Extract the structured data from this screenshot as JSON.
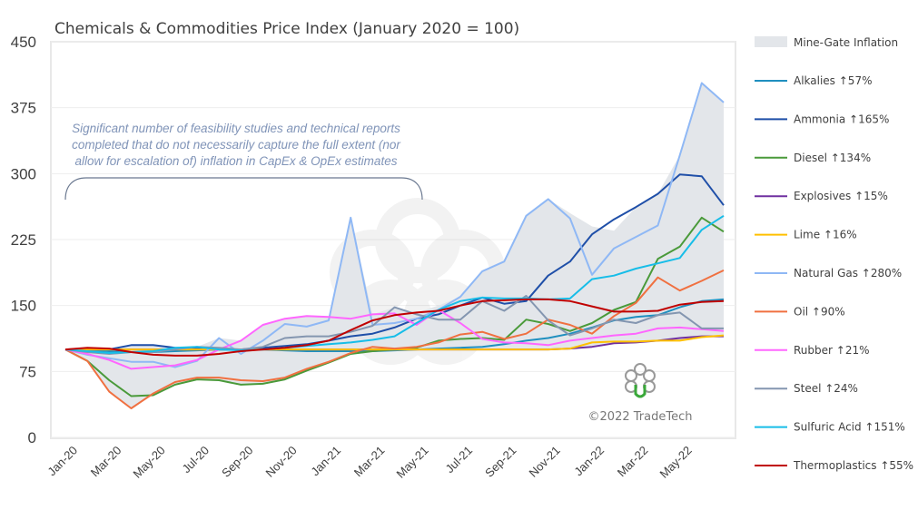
{
  "chart_data": {
    "type": "line",
    "title": "Chemicals & Commodities Price Index (January 2020 = 100)",
    "xlabel": "",
    "ylabel": "",
    "ylim": [
      0,
      450
    ],
    "yticks": [
      0,
      75,
      150,
      225,
      300,
      375,
      450
    ],
    "grid": "horizontal",
    "legend_position": "right",
    "x": [
      "Jan-20",
      "Feb-20",
      "Mar-20",
      "Apr-20",
      "May-20",
      "Jun-20",
      "Jul-20",
      "Aug-20",
      "Sep-20",
      "Oct-20",
      "Nov-20",
      "Dec-20",
      "Jan-21",
      "Feb-21",
      "Mar-21",
      "Apr-21",
      "May-21",
      "Jun-21",
      "Jul-21",
      "Aug-21",
      "Sep-21",
      "Oct-21",
      "Nov-21",
      "Dec-21",
      "Jan-22",
      "Feb-22",
      "Mar-22",
      "Apr-22",
      "May-22",
      "Jun-22",
      "Jul-22"
    ],
    "xtick_labels": [
      "Jan-20",
      "Mar-20",
      "May-20",
      "Jul-20",
      "Sep-20",
      "Nov-20",
      "Jan-21",
      "Mar-21",
      "May-21",
      "Jul-21",
      "Sep-21",
      "Nov-21",
      "Jan-22",
      "Mar-22",
      "May-22"
    ],
    "area": {
      "name": "Mine-Gate Inflation",
      "color": "#e3e6ea",
      "upper": [
        100,
        102,
        101,
        105,
        105,
        102,
        103,
        113,
        110,
        128,
        135,
        138,
        137,
        250,
        140,
        148,
        142,
        150,
        160,
        189,
        200,
        252,
        271,
        255,
        240,
        235,
        262,
        277,
        321,
        403,
        381
      ],
      "lower": [
        100,
        87,
        52,
        33,
        48,
        60,
        66,
        65,
        60,
        61,
        66,
        76,
        85,
        95,
        98,
        99,
        100,
        100,
        100,
        100,
        100,
        100,
        100,
        100,
        103,
        107,
        108,
        110,
        110,
        114,
        114
      ]
    },
    "series": [
      {
        "name": "Alkalies ↑57%",
        "color": "#1f8fbf",
        "values": [
          100,
          99,
          98,
          97,
          97,
          98,
          99,
          100,
          100,
          100,
          99,
          98,
          98,
          98,
          98,
          99,
          100,
          101,
          102,
          103,
          106,
          110,
          113,
          118,
          125,
          133,
          137,
          139,
          148,
          155,
          157
        ]
      },
      {
        "name": "Ammonia ↑165%",
        "color": "#1f4fa8",
        "values": [
          100,
          101,
          100,
          105,
          105,
          102,
          101,
          100,
          100,
          102,
          104,
          106,
          110,
          115,
          118,
          125,
          135,
          140,
          150,
          159,
          152,
          155,
          184,
          200,
          231,
          248,
          262,
          277,
          299,
          297,
          264
        ]
      },
      {
        "name": "Diesel ↑134%",
        "color": "#4a9a3a",
        "values": [
          100,
          87,
          65,
          47,
          48,
          60,
          66,
          65,
          60,
          61,
          66,
          76,
          85,
          95,
          98,
          100,
          102,
          110,
          112,
          113,
          111,
          134,
          129,
          121,
          130,
          145,
          154,
          203,
          217,
          250,
          234
        ]
      },
      {
        "name": "Explosives ↑15%",
        "color": "#7030a0",
        "values": [
          100,
          100,
          100,
          100,
          100,
          100,
          100,
          100,
          100,
          100,
          100,
          100,
          100,
          100,
          100,
          100,
          100,
          100,
          100,
          100,
          100,
          100,
          100,
          101,
          103,
          107,
          108,
          110,
          113,
          115,
          115
        ]
      },
      {
        "name": "Lime ↑16%",
        "color": "#ffc000",
        "values": [
          100,
          100,
          100,
          100,
          100,
          100,
          100,
          100,
          100,
          100,
          100,
          100,
          100,
          100,
          100,
          100,
          100,
          100,
          100,
          100,
          100,
          100,
          100,
          101,
          108,
          109,
          109,
          110,
          110,
          114,
          116
        ]
      },
      {
        "name": "Natural Gas ↑280%",
        "color": "#8fb8f5",
        "values": [
          100,
          94,
          90,
          86,
          86,
          80,
          87,
          113,
          95,
          110,
          129,
          126,
          133,
          250,
          128,
          130,
          135,
          145,
          160,
          189,
          200,
          252,
          271,
          249,
          185,
          215,
          228,
          241,
          321,
          403,
          381
        ]
      },
      {
        "name": "Oil ↑90%",
        "color": "#f07040",
        "values": [
          100,
          87,
          52,
          33,
          50,
          63,
          68,
          68,
          65,
          64,
          68,
          78,
          86,
          96,
          103,
          101,
          103,
          108,
          117,
          120,
          112,
          118,
          134,
          128,
          118,
          138,
          153,
          182,
          167,
          178,
          190
        ]
      },
      {
        "name": "Rubber ↑21%",
        "color": "#ff66ff",
        "values": [
          100,
          95,
          88,
          78,
          80,
          82,
          88,
          100,
          110,
          128,
          135,
          138,
          137,
          135,
          140,
          141,
          128,
          145,
          130,
          112,
          108,
          107,
          105,
          110,
          113,
          116,
          118,
          124,
          125,
          123,
          121
        ]
      },
      {
        "name": "Steel ↑24%",
        "color": "#8496b0",
        "values": [
          100,
          97,
          95,
          97,
          97,
          100,
          103,
          102,
          100,
          103,
          113,
          115,
          115,
          120,
          127,
          148,
          140,
          134,
          134,
          155,
          144,
          161,
          133,
          116,
          124,
          134,
          130,
          139,
          142,
          124,
          124
        ]
      },
      {
        "name": "Sulfuric Acid ↑151%",
        "color": "#17bde8",
        "values": [
          100,
          98,
          96,
          97,
          98,
          102,
          103,
          100,
          99,
          100,
          102,
          104,
          106,
          108,
          111,
          115,
          130,
          145,
          155,
          159,
          158,
          158,
          157,
          158,
          180,
          184,
          192,
          198,
          204,
          236,
          252
        ]
      },
      {
        "name": "Thermoplastics ↑55%",
        "color": "#c00000",
        "values": [
          100,
          102,
          101,
          97,
          94,
          93,
          93,
          95,
          98,
          100,
          102,
          105,
          110,
          122,
          133,
          139,
          142,
          144,
          150,
          155,
          156,
          157,
          157,
          155,
          149,
          143,
          143,
          144,
          151,
          154,
          155
        ]
      }
    ],
    "annotation": [
      "Significant number of feasibility studies and technical reports",
      "completed that do not necessarily capture the full extent (nor",
      "allow for escalation of) inflation in CapEx & OpEx estimates"
    ],
    "copyright": "©2022 TradeTech",
    "logo_text": "TradeTech"
  }
}
